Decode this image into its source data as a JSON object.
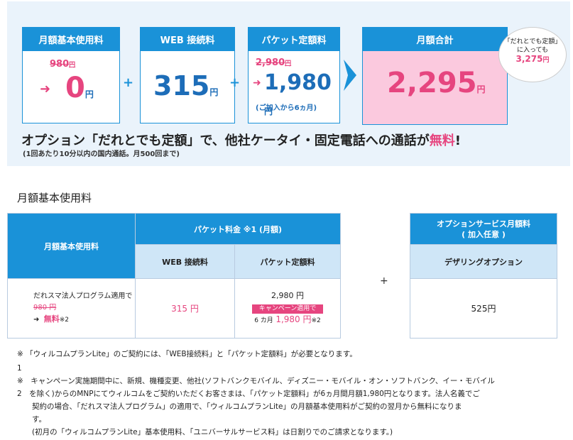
{
  "promo": {
    "basic": {
      "title": "月額基本使用料",
      "old_price": "980",
      "old_unit": "円",
      "new_price": "0",
      "unit": "円"
    },
    "web": {
      "title": "WEB 接続料",
      "price": "315",
      "unit": "円"
    },
    "packet": {
      "title": "パケット定額料",
      "old_price": "2,980",
      "old_unit": "円",
      "new_price": "1,980",
      "unit": "円",
      "note": "(ご加入から6ヵ月)"
    },
    "total": {
      "title": "月額合計",
      "price": "2,295",
      "unit": "円"
    },
    "bubble": {
      "line1": "「だれとでも定額」",
      "line2": "に入っても",
      "amount": "3,275",
      "unit": "円"
    },
    "headline_main": "オプション「だれとでも定額」で、他社ケータイ・固定電話への通話が",
    "headline_free": "無料",
    "headline_end": "!",
    "subnote": "(1回あたり10分以内の国内通話。月500回まで)"
  },
  "section": {
    "title": "月額基本使用料",
    "table": {
      "col_basic": "月額基本使用料",
      "col_packet": "パケット料金 ※1 (月額)",
      "sub_web": "WEB 接続料",
      "sub_packet": "パケット定額料",
      "row_label": "だれスマ法人プログラム適用で",
      "row_old": "980 円",
      "row_free": "無料",
      "row_free_note": "※2",
      "row_web": "315 円",
      "row_packet_price": "2,980 円",
      "row_campaign": "キャンペーン適用で",
      "row_packet_months": "6 カ月",
      "row_packet_discount": "1,980 円",
      "row_packet_note": "※2"
    },
    "option_table": {
      "header": "オプションサービス月額料\n( 加入任意 )",
      "header_l1": "オプションサービス月額料",
      "header_l2": "( 加入任意 )",
      "sub": "デザリングオプション",
      "value": "525円"
    },
    "plus": "+"
  },
  "notes": {
    "n1": "※ 「ウィルコムプランLite」のご契約には、「WEB接続料」と「パケット定額料」が必要となります。",
    "n1_num": "1",
    "n2_a": "※　キャンペーン実施期間中に、新規、機種変更、他社(ソフトバンクモバイル、ディズニー・モバイル・オン・ソフトバンク、イー・モバイル",
    "n2_b": "2　を除く)からのMNPにてウィルコムをご契約いただくお客さまは、「パケット定額料」が6ヵ月間月額1,980円となります。法人名義でご",
    "n2_c": "　　契約の場合、「だれスマ法人プログラム」の適用で、「ウィルコムプランLite」の月額基本使用料がご契約の翌月から無料になりま",
    "n2_d": "　　す。",
    "n2_e": "　　(初月の「ウィルコムプランLite」基本使用料、「ユニバーサルサービス料」は日割りでのご請求となります。)"
  },
  "colors": {
    "accent_blue": "#1a92d8",
    "pink": "#e6457f",
    "total_bg": "#fbc9de",
    "panel_bg": "#eaf3fb"
  }
}
